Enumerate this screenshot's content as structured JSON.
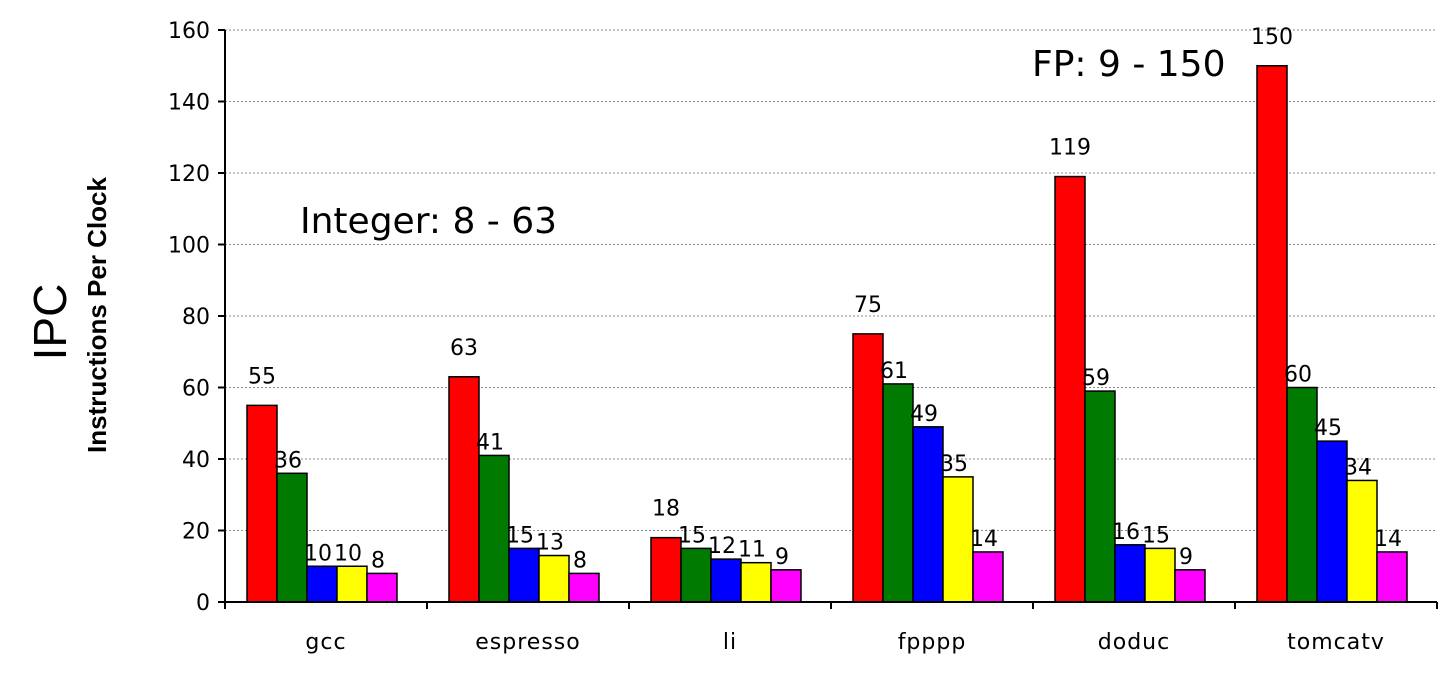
{
  "chart_data": {
    "type": "bar",
    "ylabel_main": "IPC",
    "ylabel_sub": "Instructions Per Clock",
    "categories": [
      "gcc",
      "espresso",
      "li",
      "fpppp",
      "doduc",
      "tomcatv"
    ],
    "ylim": [
      0,
      160
    ],
    "yticks": [
      0,
      20,
      40,
      60,
      80,
      100,
      120,
      140,
      160
    ],
    "grid": true,
    "series": [
      {
        "values": [
          55,
          63,
          18,
          75,
          119,
          150
        ],
        "color": "#ff0000"
      },
      {
        "values": [
          36,
          41,
          15,
          61,
          59,
          60
        ],
        "color": "#007a00"
      },
      {
        "values": [
          10,
          15,
          12,
          49,
          16,
          45
        ],
        "color": "#0000ff"
      },
      {
        "values": [
          10,
          13,
          11,
          35,
          15,
          34
        ],
        "color": "#ffff00"
      },
      {
        "values": [
          8,
          8,
          9,
          14,
          9,
          14
        ],
        "color": "#ff00ff"
      }
    ],
    "annotations": [
      {
        "text": "Integer: 8 - 63",
        "near": "left-middle"
      },
      {
        "text": "FP: 9 - 150",
        "near": "top-right"
      }
    ]
  }
}
